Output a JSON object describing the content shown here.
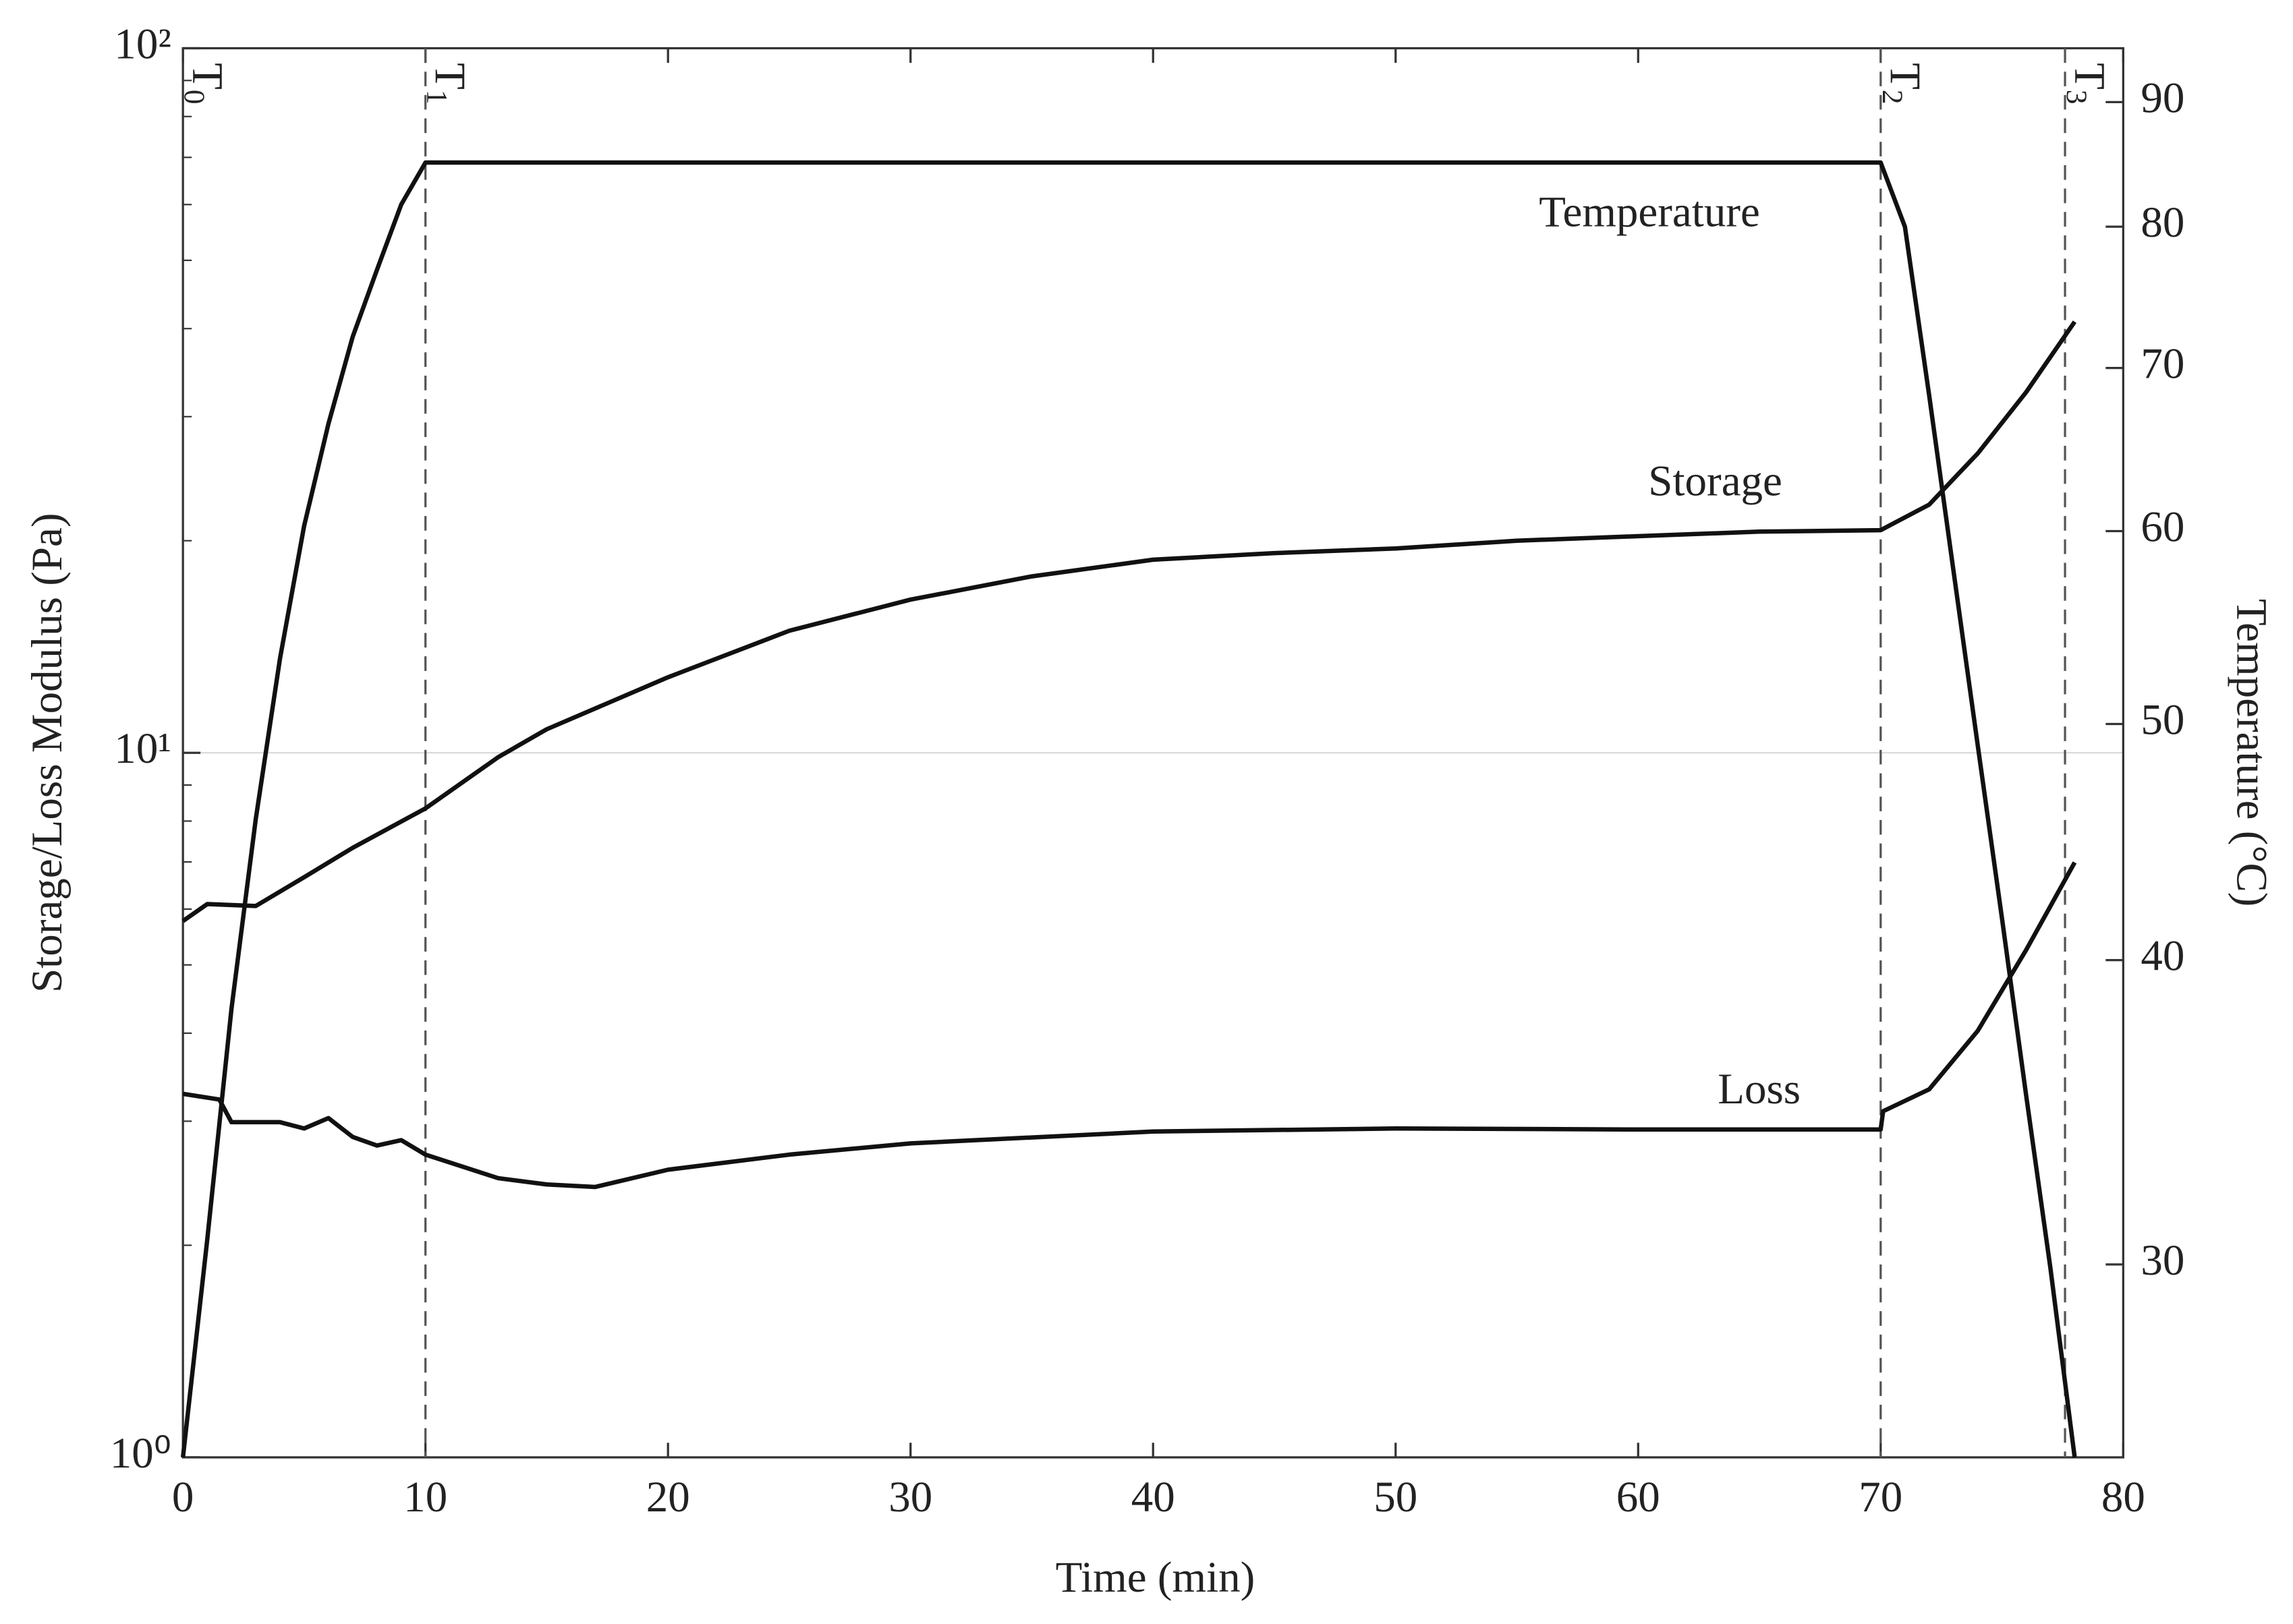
{
  "chart_data": {
    "type": "line",
    "x_label": "Time (min)",
    "y_label": "Storage/Loss Modulus (Pa)",
    "y2_label": "Temperature (°C)",
    "xlim": [
      0,
      80
    ],
    "xticks": [
      0,
      10,
      20,
      30,
      40,
      50,
      60,
      70,
      80
    ],
    "ylim": [
      1,
      100
    ],
    "ylog": true,
    "yticks": [
      {
        "value": 1,
        "label": "10⁰"
      },
      {
        "value": 10,
        "label": "10¹"
      },
      {
        "value": 100,
        "label": "10²"
      }
    ],
    "y2lim": [
      25,
      94.7
    ],
    "y2log": true,
    "y2ticks": [
      30,
      40,
      50,
      60,
      70,
      80,
      90
    ],
    "grid": true,
    "markers": [
      {
        "label": "T",
        "sub": "0",
        "x": 0
      },
      {
        "label": "T",
        "sub": "1",
        "x": 10
      },
      {
        "label": "T",
        "sub": "2",
        "x": 70
      },
      {
        "label": "T",
        "sub": "3",
        "x": 77.6
      }
    ],
    "series": [
      {
        "name": "Temperature",
        "color": "#111111",
        "axis": "y2",
        "x": [
          0,
          1,
          2,
          3,
          4,
          5,
          6,
          7,
          8,
          9,
          10,
          70,
          71,
          72,
          73,
          74,
          75,
          76,
          77,
          78
        ],
        "values": [
          25,
          30.7,
          38.2,
          45.7,
          53.2,
          60.3,
          66.4,
          72.1,
          76.8,
          81.7,
          85,
          85,
          80,
          68.2,
          57.8,
          49,
          41.6,
          35.2,
          29.9,
          25
        ]
      },
      {
        "name": "Storage",
        "color": "#111111",
        "x": [
          0,
          1,
          3,
          5,
          7,
          10,
          13,
          15,
          20,
          25,
          30,
          35,
          40,
          45,
          50,
          55,
          60,
          65,
          70,
          72,
          74,
          76,
          78
        ],
        "values": [
          5.77,
          6.1,
          6.06,
          6.66,
          7.33,
          8.34,
          9.86,
          10.8,
          12.8,
          14.9,
          16.5,
          17.8,
          18.8,
          19.2,
          19.5,
          20.0,
          20.3,
          20.6,
          20.7,
          22.5,
          26.6,
          32.5,
          40.9
        ]
      },
      {
        "name": "Loss",
        "color": "#111111",
        "x": [
          0,
          1.5,
          2,
          4,
          5,
          6,
          7,
          8,
          9,
          10,
          13,
          15,
          17,
          20,
          25,
          30,
          40,
          50,
          60,
          70,
          70.1,
          72,
          74,
          76,
          78
        ],
        "values": [
          3.28,
          3.22,
          2.99,
          2.99,
          2.93,
          3.03,
          2.85,
          2.77,
          2.82,
          2.69,
          2.49,
          2.44,
          2.42,
          2.56,
          2.69,
          2.79,
          2.9,
          2.93,
          2.92,
          2.92,
          3.1,
          3.33,
          4.03,
          5.25,
          6.99
        ]
      }
    ]
  }
}
